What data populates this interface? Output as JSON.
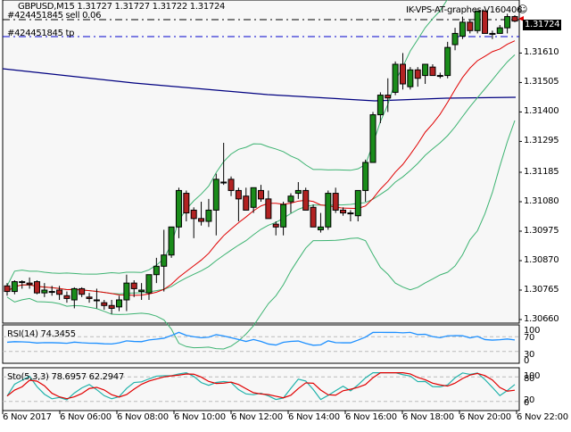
{
  "header": {
    "symbol_info": "GBPUSD,M15  1.31727 1.31727 1.31722 1.31724",
    "order_label": "#424451845 sell 0.06",
    "tp_label": "#424451845 tp",
    "expert_name": "IK-VPS-AT-graphes-V160406",
    "expert_icon": "smiley-icon"
  },
  "current_price": "1.31724",
  "price_axis": [
    "1.31610",
    "1.31505",
    "1.31400",
    "1.31295",
    "1.31185",
    "1.31080",
    "1.30975",
    "1.30870",
    "1.30765",
    "1.30660"
  ],
  "rsi": {
    "label": "RSI(14) 74.3455",
    "levels": [
      "100",
      "70",
      "30",
      "0"
    ]
  },
  "sto": {
    "label": "Sto(5,3,3) 78.6957 62.2947",
    "levels": [
      "100",
      "80",
      "20",
      "0"
    ]
  },
  "time_axis": [
    "6 Nov 2017",
    "6 Nov 06:00",
    "6 Nov 08:00",
    "6 Nov 10:00",
    "6 Nov 12:00",
    "6 Nov 14:00",
    "6 Nov 16:00",
    "6 Nov 18:00",
    "6 Nov 20:00",
    "6 Nov 22:00"
  ],
  "colors": {
    "bull": "#1a8c1a",
    "bear": "#b22222",
    "bands": "#3cb371",
    "ma_red": "#e00000",
    "ma_blue": "#000080",
    "rsi": "#1e90ff",
    "sto_main": "#20b2aa",
    "sto_signal": "#e00000",
    "background": "#f7f7f7"
  },
  "chart_data": {
    "type": "candlestick",
    "title": "GBPUSD,M15",
    "xlabel": "",
    "ylabel": "",
    "ylim": [
      1.3066,
      1.3177
    ],
    "series": [
      {
        "name": "candles",
        "ohlc": [
          [
            1.3078,
            1.3079,
            1.30745,
            1.3076
          ],
          [
            1.3076,
            1.308,
            1.3075,
            1.30795
          ],
          [
            1.30795,
            1.308,
            1.3077,
            1.30795
          ],
          [
            1.3079,
            1.3081,
            1.3077,
            1.30785
          ],
          [
            1.30795,
            1.308,
            1.3075,
            1.30755
          ],
          [
            1.30755,
            1.3079,
            1.3074,
            1.30765
          ],
          [
            1.3076,
            1.3078,
            1.30745,
            1.3076
          ],
          [
            1.30765,
            1.3078,
            1.3073,
            1.3075
          ],
          [
            1.30745,
            1.3076,
            1.3072,
            1.30735
          ],
          [
            1.3073,
            1.30775,
            1.307,
            1.3077
          ],
          [
            1.3077,
            1.30775,
            1.3074,
            1.3075
          ],
          [
            1.3074,
            1.30755,
            1.3072,
            1.30735
          ],
          [
            1.3073,
            1.3077,
            1.307,
            1.3073
          ],
          [
            1.3072,
            1.3073,
            1.30695,
            1.3071
          ],
          [
            1.3071,
            1.3073,
            1.3068,
            1.307
          ],
          [
            1.30705,
            1.30745,
            1.3069,
            1.3073
          ],
          [
            1.3073,
            1.3082,
            1.3069,
            1.3079
          ],
          [
            1.3079,
            1.308,
            1.3074,
            1.3077
          ],
          [
            1.3076,
            1.3079,
            1.3073,
            1.30765
          ],
          [
            1.30755,
            1.3082,
            1.3073,
            1.3082
          ],
          [
            1.3082,
            1.3088,
            1.3079,
            1.3085
          ],
          [
            1.3085,
            1.3098,
            1.3076,
            1.3089
          ],
          [
            1.3089,
            1.3099,
            1.3088,
            1.3099
          ],
          [
            1.3099,
            1.3113,
            1.3095,
            1.3112
          ],
          [
            1.3111,
            1.3112,
            1.3101,
            1.3104
          ],
          [
            1.3105,
            1.3106,
            1.3095,
            1.3102
          ],
          [
            1.3102,
            1.3108,
            1.30995,
            1.3101
          ],
          [
            1.3101,
            1.3109,
            1.3099,
            1.3105
          ],
          [
            1.3105,
            1.3118,
            1.3096,
            1.3116
          ],
          [
            1.3115,
            1.3129,
            1.3114,
            1.3115
          ],
          [
            1.3116,
            1.3117,
            1.311,
            1.3112
          ],
          [
            1.3112,
            1.3113,
            1.3101,
            1.3109
          ],
          [
            1.311,
            1.3113,
            1.3105,
            1.3105
          ],
          [
            1.3106,
            1.3113,
            1.3104,
            1.3113
          ],
          [
            1.3112,
            1.3114,
            1.3108,
            1.3109
          ],
          [
            1.3109,
            1.3112,
            1.3102,
            1.3102
          ],
          [
            1.31,
            1.3101,
            1.3096,
            1.3099
          ],
          [
            1.3099,
            1.3108,
            1.3096,
            1.3107
          ],
          [
            1.3108,
            1.3111,
            1.3104,
            1.311
          ],
          [
            1.3111,
            1.3115,
            1.3109,
            1.3112
          ],
          [
            1.3112,
            1.3113,
            1.3105,
            1.3105
          ],
          [
            1.3106,
            1.3107,
            1.3099,
            1.3099
          ],
          [
            1.3098,
            1.3104,
            1.3097,
            1.3099
          ],
          [
            1.3099,
            1.3112,
            1.3098,
            1.3111
          ],
          [
            1.3111,
            1.3113,
            1.3104,
            1.3105
          ],
          [
            1.3105,
            1.3106,
            1.3103,
            1.3104
          ],
          [
            1.3104,
            1.3105,
            1.3101,
            1.3104
          ],
          [
            1.3103,
            1.3112,
            1.3101,
            1.3112
          ],
          [
            1.3112,
            1.3123,
            1.3108,
            1.3122
          ],
          [
            1.3122,
            1.314,
            1.3122,
            1.3139
          ],
          [
            1.3139,
            1.3147,
            1.3136,
            1.3146
          ],
          [
            1.3146,
            1.3152,
            1.314,
            1.3145
          ],
          [
            1.3147,
            1.3158,
            1.3146,
            1.3157
          ],
          [
            1.3157,
            1.3161,
            1.3148,
            1.315
          ],
          [
            1.3149,
            1.3156,
            1.3148,
            1.3155
          ],
          [
            1.3155,
            1.3156,
            1.3149,
            1.3152
          ],
          [
            1.3153,
            1.3156,
            1.315,
            1.3157
          ],
          [
            1.3156,
            1.3157,
            1.3153,
            1.3153
          ],
          [
            1.3153,
            1.3154,
            1.3152,
            1.3153
          ],
          [
            1.3153,
            1.3165,
            1.3152,
            1.3163
          ],
          [
            1.3164,
            1.317,
            1.3162,
            1.3168
          ],
          [
            1.3167,
            1.3174,
            1.3166,
            1.3172
          ],
          [
            1.3172,
            1.3173,
            1.3168,
            1.3169
          ],
          [
            1.3169,
            1.3176,
            1.3168,
            1.3176
          ],
          [
            1.3176,
            1.3176,
            1.3168,
            1.3168
          ],
          [
            1.3168,
            1.3169,
            1.3166,
            1.3168
          ],
          [
            1.3168,
            1.3171,
            1.3168,
            1.317
          ],
          [
            1.317,
            1.3175,
            1.3168,
            1.3174
          ],
          [
            1.3174,
            1.31745,
            1.3172,
            1.31724
          ]
        ]
      },
      {
        "name": "MA blue",
        "values": [
          1.3157,
          1.3144
        ]
      },
      {
        "name": "RSI(14)",
        "last": 74.3455
      },
      {
        "name": "Sto main",
        "last": 78.6957
      },
      {
        "name": "Sto signal",
        "last": 62.2947
      }
    ],
    "categories": [
      "6 Nov 2017",
      "6 Nov 06:00",
      "6 Nov 08:00",
      "6 Nov 10:00",
      "6 Nov 12:00",
      "6 Nov 14:00",
      "6 Nov 16:00",
      "6 Nov 18:00",
      "6 Nov 20:00",
      "6 Nov 22:00"
    ]
  }
}
